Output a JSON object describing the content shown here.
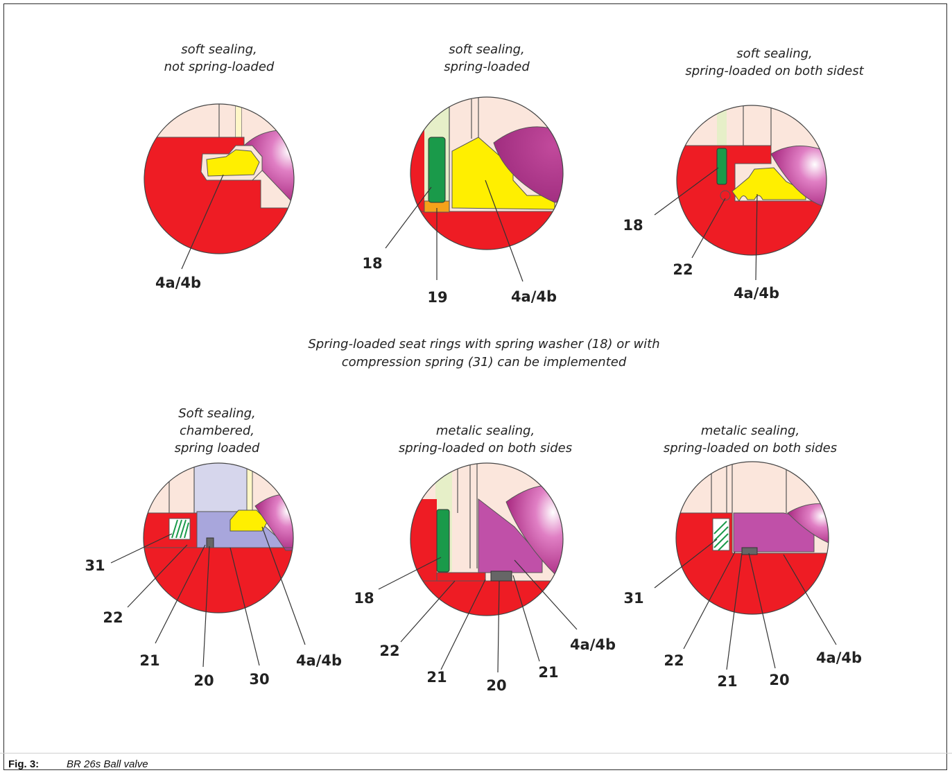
{
  "diagrams": [
    {
      "caption": [
        "soft sealing,",
        "not spring-loaded"
      ],
      "labels": [
        "4a/4b"
      ]
    },
    {
      "caption": [
        "soft sealing,",
        "spring-loaded"
      ],
      "labels": [
        "18",
        "19",
        "4a/4b"
      ]
    },
    {
      "caption": [
        "soft sealing,",
        "spring-loaded on both sidest"
      ],
      "labels": [
        "18",
        "22",
        "4a/4b"
      ]
    },
    {
      "caption": [
        "Soft sealing,",
        "chambered,",
        "spring loaded"
      ],
      "labels": [
        "31",
        "22",
        "21",
        "20",
        "30",
        "4a/4b"
      ]
    },
    {
      "caption": [
        "metalic sealing,",
        "spring-loaded on both sides"
      ],
      "labels": [
        "18",
        "22",
        "21",
        "20",
        "21",
        "4a/4b"
      ]
    },
    {
      "caption": [
        "metalic sealing,",
        "spring-loaded on both sides"
      ],
      "labels": [
        "31",
        "22",
        "21",
        "20",
        "4a/4b"
      ]
    }
  ],
  "note": [
    "Spring-loaded seat rings with spring washer (18) or with",
    "compression spring (31) can be implemented"
  ],
  "figure": {
    "number": "Fig. 3:",
    "title": "BR 26s Ball valve"
  },
  "colors": {
    "body": "#ee1c24",
    "seal": "#ffef00",
    "ball": "#a8287e",
    "spring_washer": "#1a9a4a",
    "seat_metal": "#c050a8",
    "housing_light": "#fbe6dc"
  }
}
